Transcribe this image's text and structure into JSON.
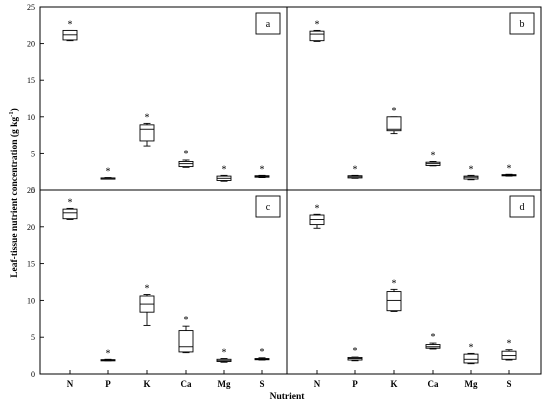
{
  "chart_data": {
    "type": "box",
    "ylabel": "Leaf-tissue nutrient concentration (g kg",
    "ylabel_sup": "-1",
    "ylabel_close": ")",
    "xlabel": "Nutrient",
    "categories": [
      "N",
      "P",
      "K",
      "Ca",
      "Mg",
      "S"
    ],
    "yticks": [
      "0",
      "5",
      "10",
      "15",
      "20",
      "25"
    ],
    "ylim": [
      0,
      25
    ],
    "significance_marker": "*",
    "panels": [
      {
        "label": "a",
        "boxes": [
          {
            "category": "N",
            "min": 20.4,
            "q1": 20.5,
            "median": 21.2,
            "q3": 21.8,
            "max": 21.8
          },
          {
            "category": "P",
            "min": 1.5,
            "q1": 1.55,
            "median": 1.6,
            "q3": 1.65,
            "max": 1.7
          },
          {
            "category": "K",
            "min": 6.0,
            "q1": 6.7,
            "median": 8.3,
            "q3": 8.9,
            "max": 9.1
          },
          {
            "category": "Ca",
            "min": 3.1,
            "q1": 3.2,
            "median": 3.6,
            "q3": 3.9,
            "max": 4.1
          },
          {
            "category": "Mg",
            "min": 1.2,
            "q1": 1.3,
            "median": 1.6,
            "q3": 1.9,
            "max": 2.0
          },
          {
            "category": "S",
            "min": 1.7,
            "q1": 1.75,
            "median": 1.85,
            "q3": 1.95,
            "max": 2.0
          }
        ]
      },
      {
        "label": "b",
        "boxes": [
          {
            "category": "N",
            "min": 20.3,
            "q1": 20.4,
            "median": 21.3,
            "q3": 21.7,
            "max": 21.8
          },
          {
            "category": "P",
            "min": 1.6,
            "q1": 1.65,
            "median": 1.8,
            "q3": 1.95,
            "max": 2.0
          },
          {
            "category": "K",
            "min": 7.7,
            "q1": 8.1,
            "median": 8.3,
            "q3": 10.0,
            "max": 10.0
          },
          {
            "category": "Ca",
            "min": 3.3,
            "q1": 3.35,
            "median": 3.6,
            "q3": 3.8,
            "max": 3.9
          },
          {
            "category": "Mg",
            "min": 1.4,
            "q1": 1.5,
            "median": 1.75,
            "q3": 1.9,
            "max": 2.0
          },
          {
            "category": "S",
            "min": 1.9,
            "q1": 1.95,
            "median": 2.0,
            "q3": 2.1,
            "max": 2.15
          }
        ]
      },
      {
        "label": "c",
        "boxes": [
          {
            "category": "N",
            "min": 21.0,
            "q1": 21.1,
            "median": 21.9,
            "q3": 22.4,
            "max": 22.5
          },
          {
            "category": "P",
            "min": 1.8,
            "q1": 1.85,
            "median": 1.9,
            "q3": 1.95,
            "max": 2.0
          },
          {
            "category": "K",
            "min": 6.6,
            "q1": 8.4,
            "median": 9.5,
            "q3": 10.6,
            "max": 10.8
          },
          {
            "category": "Ca",
            "min": 2.9,
            "q1": 3.0,
            "median": 3.7,
            "q3": 5.9,
            "max": 6.5
          },
          {
            "category": "Mg",
            "min": 1.6,
            "q1": 1.7,
            "median": 1.8,
            "q3": 2.0,
            "max": 2.1
          },
          {
            "category": "S",
            "min": 1.9,
            "q1": 1.95,
            "median": 2.0,
            "q3": 2.1,
            "max": 2.2
          }
        ]
      },
      {
        "label": "d",
        "boxes": [
          {
            "category": "N",
            "min": 19.8,
            "q1": 20.3,
            "median": 21.0,
            "q3": 21.6,
            "max": 21.7
          },
          {
            "category": "P",
            "min": 1.8,
            "q1": 1.9,
            "median": 2.1,
            "q3": 2.25,
            "max": 2.3
          },
          {
            "category": "K",
            "min": 8.5,
            "q1": 8.6,
            "median": 10.0,
            "q3": 11.2,
            "max": 11.5
          },
          {
            "category": "Ca",
            "min": 3.4,
            "q1": 3.5,
            "median": 3.7,
            "q3": 4.0,
            "max": 4.2
          },
          {
            "category": "Mg",
            "min": 1.4,
            "q1": 1.5,
            "median": 2.0,
            "q3": 2.7,
            "max": 2.8
          },
          {
            "category": "S",
            "min": 1.9,
            "q1": 2.0,
            "median": 2.5,
            "q3": 3.1,
            "max": 3.3
          }
        ]
      }
    ]
  }
}
